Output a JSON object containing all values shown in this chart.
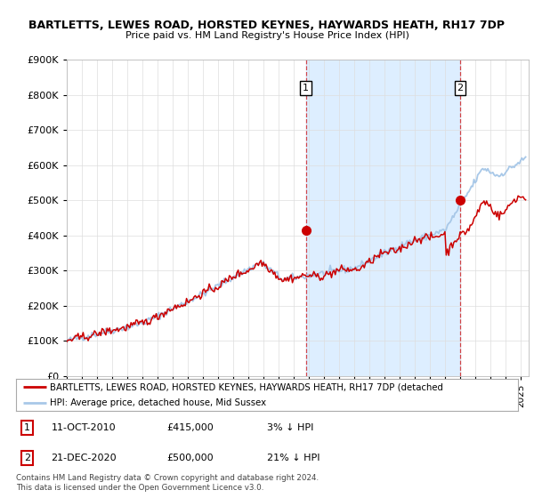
{
  "title": "BARTLETTS, LEWES ROAD, HORSTED KEYNES, HAYWARDS HEATH, RH17 7DP",
  "subtitle": "Price paid vs. HM Land Registry's House Price Index (HPI)",
  "ylim": [
    0,
    900000
  ],
  "xlim_start": 1995.0,
  "xlim_end": 2025.5,
  "hpi_color": "#a8c8e8",
  "price_color": "#cc0000",
  "shade_color": "#ddeeff",
  "sale1_x": 2010.78,
  "sale1_y": 415000,
  "sale1_label": "1",
  "sale2_x": 2020.97,
  "sale2_y": 500000,
  "sale2_label": "2",
  "legend_line1": "BARTLETTS, LEWES ROAD, HORSTED KEYNES, HAYWARDS HEATH, RH17 7DP (detached",
  "legend_line2": "HPI: Average price, detached house, Mid Sussex",
  "table_row1": [
    "1",
    "11-OCT-2010",
    "£415,000",
    "3% ↓ HPI"
  ],
  "table_row2": [
    "2",
    "21-DEC-2020",
    "£500,000",
    "21% ↓ HPI"
  ],
  "footnote": "Contains HM Land Registry data © Crown copyright and database right 2024.\nThis data is licensed under the Open Government Licence v3.0.",
  "background_color": "#ffffff",
  "grid_color": "#dddddd"
}
